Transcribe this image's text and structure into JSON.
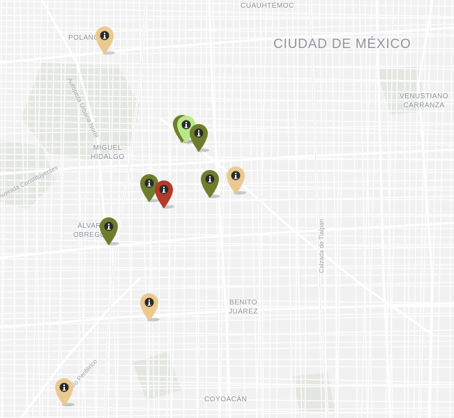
{
  "map": {
    "district_labels": [
      {
        "text": "CUAUHTÉMOC",
        "id": "cuauhtemoc",
        "size": "sm"
      },
      {
        "text": "CIUDAD DE MÉXICO",
        "id": "ciudad-de-mexico",
        "size": "big"
      },
      {
        "text": "POLANCO",
        "id": "polanco",
        "size": "sm"
      },
      {
        "text": "VENUSTIANO\nCARRANZA",
        "id": "venustiano-carranza",
        "size": "sm"
      },
      {
        "text": "MIGUEL\nHIDALGO",
        "id": "miguel-hidalgo",
        "size": "sm"
      },
      {
        "text": "ÁLVARO\nOBREGÓN",
        "id": "alvaro-obregon",
        "size": "sm"
      },
      {
        "text": "BENITO\nJUÁREZ",
        "id": "benito-juarez",
        "size": "sm"
      },
      {
        "text": "COYOACÁN",
        "id": "coyoacan",
        "size": "sm"
      }
    ],
    "road_labels": [
      {
        "text": "Autopista Urbana Norte",
        "id": "autopista-urbana-norte"
      },
      {
        "text": "Avenida Constituyentes",
        "id": "avenida-constituyentes"
      },
      {
        "text": "Calzada de Tlalpan",
        "id": "calzada-de-tlalpan"
      },
      {
        "text": "Anillo Periférico",
        "id": "anillo-periferico"
      }
    ],
    "marker_icon": "info-icon",
    "colors": {
      "marker_tan": "#ebc98f",
      "marker_olive": "#6e7d2b",
      "marker_light_green": "#b8e986",
      "marker_red": "#b23a2c",
      "background": "#f1f1f1",
      "park": "#e6e8e3",
      "road": "#ffffff"
    },
    "markers": [
      {
        "id": "polanco",
        "color": "tan"
      },
      {
        "id": "roma-light-green",
        "color": "light_green"
      },
      {
        "id": "roma-olive-1",
        "color": "olive"
      },
      {
        "id": "roma-olive-2",
        "color": "olive"
      },
      {
        "id": "condesa-olive",
        "color": "olive"
      },
      {
        "id": "condesa-red",
        "color": "red"
      },
      {
        "id": "doctores-olive",
        "color": "olive"
      },
      {
        "id": "doctores-tan",
        "color": "tan"
      },
      {
        "id": "alvaro-obregon-olive",
        "color": "olive"
      },
      {
        "id": "mixcoac-tan",
        "color": "tan"
      },
      {
        "id": "southwest-tan",
        "color": "tan"
      }
    ]
  }
}
